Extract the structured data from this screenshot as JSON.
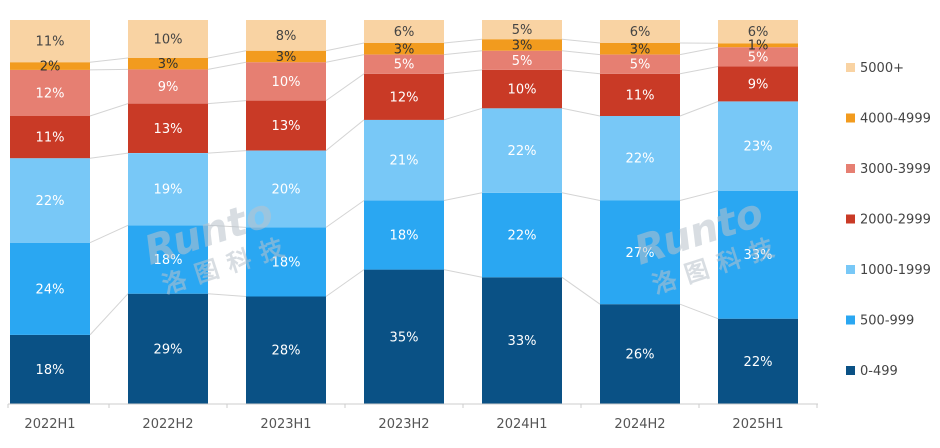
{
  "chart_data": {
    "type": "bar",
    "stacked": true,
    "normalized": true,
    "categories": [
      "2022H1",
      "2022H2",
      "2023H1",
      "2023H2",
      "2024H1",
      "2024H2",
      "2025H1"
    ],
    "series": [
      {
        "name": "0-499",
        "color": "#0a5185",
        "label_color": "#ffffff",
        "values": [
          18,
          29,
          28,
          35,
          33,
          26,
          22
        ]
      },
      {
        "name": "500-999",
        "color": "#2aa7f2",
        "label_color": "#ffffff",
        "values": [
          24,
          18,
          18,
          18,
          22,
          27,
          33
        ]
      },
      {
        "name": "1000-1999",
        "color": "#78c8f7",
        "label_color": "#ffffff",
        "values": [
          22,
          19,
          20,
          21,
          22,
          22,
          23
        ]
      },
      {
        "name": "2000-2999",
        "color": "#c93a26",
        "label_color": "#ffffff",
        "values": [
          11,
          13,
          13,
          12,
          10,
          11,
          9
        ]
      },
      {
        "name": "3000-3999",
        "color": "#e67f72",
        "label_color": "#ffffff",
        "values": [
          12,
          9,
          10,
          5,
          5,
          5,
          5
        ]
      },
      {
        "name": "4000-4999",
        "color": "#f29b1e",
        "label_color": "#333333",
        "values": [
          2,
          3,
          3,
          3,
          3,
          3,
          1
        ]
      },
      {
        "name": "5000+",
        "color": "#f9d3a3",
        "label_color": "#444444",
        "values": [
          11,
          10,
          8,
          6,
          5,
          6,
          6
        ]
      }
    ],
    "value_suffix": "%",
    "title": "",
    "xlabel": "",
    "ylabel": "",
    "ylim": [
      0,
      100
    ],
    "legend_position": "right",
    "connector_lines": true
  },
  "watermark": {
    "text": "Runto",
    "subtext": "洛图科技"
  }
}
